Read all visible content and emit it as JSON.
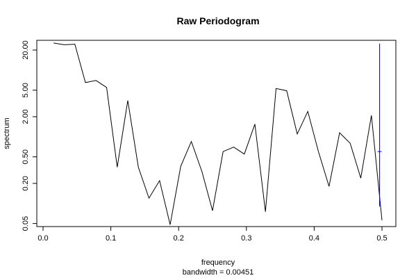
{
  "chart_data": {
    "type": "line",
    "title": "Raw Periodogram",
    "xlabel": "frequency",
    "sublabel": "bandwidth = 0.00451",
    "ylabel": "spectrum",
    "log_y": true,
    "grid": false,
    "xlim": [
      0.0,
      0.5
    ],
    "ylim": [
      0.045,
      28
    ],
    "x_ticks": [
      0.0,
      0.1,
      0.2,
      0.3,
      0.4,
      0.5
    ],
    "x_tick_labels": [
      "0.0",
      "0.1",
      "0.2",
      "0.3",
      "0.4",
      "0.5"
    ],
    "y_ticks": [
      0.05,
      0.2,
      0.5,
      2.0,
      5.0,
      20.0
    ],
    "y_tick_labels": [
      "0.05",
      "0.20",
      "0.50",
      "2.00",
      "5.00",
      "20.00"
    ],
    "series": [
      {
        "color": "#000000",
        "x": [
          0.0156,
          0.0313,
          0.0469,
          0.0625,
          0.0781,
          0.0938,
          0.1094,
          0.125,
          0.1406,
          0.1563,
          0.1719,
          0.1875,
          0.2031,
          0.2188,
          0.2344,
          0.25,
          0.2656,
          0.2813,
          0.2969,
          0.3125,
          0.3281,
          0.3438,
          0.3594,
          0.375,
          0.3906,
          0.4063,
          0.4219,
          0.4375,
          0.4531,
          0.4688,
          0.4844,
          0.5
        ],
        "y": [
          25.5,
          24.0,
          24.5,
          6.5,
          7.0,
          5.5,
          0.35,
          3.5,
          0.35,
          0.12,
          0.22,
          0.048,
          0.36,
          0.85,
          0.3,
          0.078,
          0.6,
          0.7,
          0.55,
          1.55,
          0.075,
          5.3,
          4.9,
          1.1,
          2.4,
          0.6,
          0.18,
          1.15,
          0.8,
          0.24,
          2.1,
          0.056
        ]
      }
    ],
    "ci_bar": {
      "color": "#0000cc",
      "x": 0.4965,
      "lower": 0.09,
      "upper": 25.0,
      "center": 0.6
    }
  }
}
